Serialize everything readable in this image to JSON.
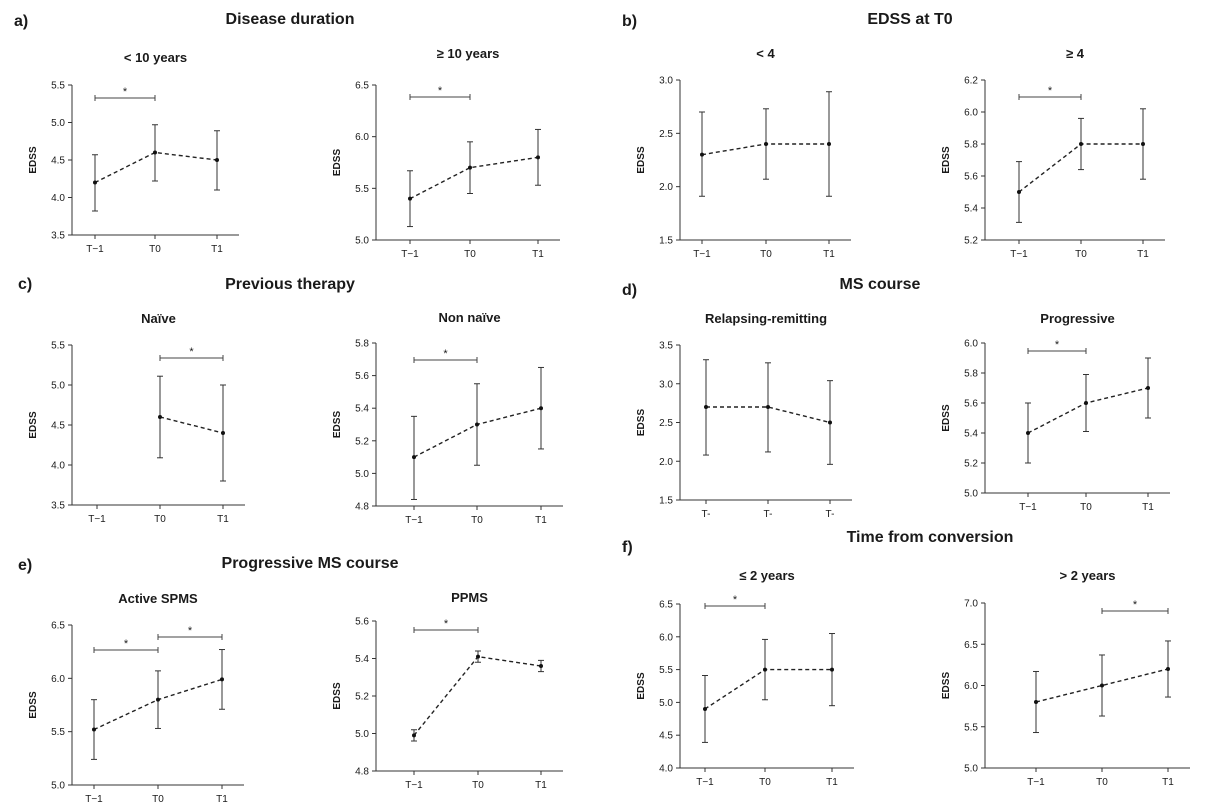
{
  "sections": [
    {
      "letter": "a)",
      "title": "Disease duration"
    },
    {
      "letter": "b)",
      "title": "EDSS at T0"
    },
    {
      "letter": "c)",
      "title": "Previous therapy"
    },
    {
      "letter": "d)",
      "title": "MS course"
    },
    {
      "letter": "e)",
      "title": "Progressive MS course"
    },
    {
      "letter": "f)",
      "title": "Time from conversion"
    }
  ],
  "chart_data": [
    {
      "type": "line",
      "title": "< 10 years",
      "ylabel": "EDSS",
      "categories": [
        "T−1",
        "T0",
        "T1"
      ],
      "values": [
        4.2,
        4.6,
        4.5
      ],
      "err_low": [
        3.82,
        4.22,
        4.1
      ],
      "err_high": [
        4.57,
        4.97,
        4.89
      ],
      "ylim": [
        3.5,
        5.5
      ],
      "yticks": [
        "3.5",
        "4.0",
        "4.5",
        "5.0",
        "5.5"
      ],
      "significance": [
        {
          "from": 0,
          "to": 1,
          "label": "*"
        }
      ]
    },
    {
      "type": "line",
      "title": "≥ 10 years",
      "ylabel": "EDSS",
      "categories": [
        "T−1",
        "T0",
        "T1"
      ],
      "values": [
        5.4,
        5.7,
        5.8
      ],
      "err_low": [
        5.13,
        5.45,
        5.53
      ],
      "err_high": [
        5.67,
        5.95,
        6.07
      ],
      "ylim": [
        5.0,
        6.5
      ],
      "yticks": [
        "5.0",
        "5.5",
        "6.0",
        "6.5"
      ],
      "significance": [
        {
          "from": 0,
          "to": 1,
          "label": "*"
        }
      ]
    },
    {
      "type": "line",
      "title": "< 4",
      "ylabel": "EDSS",
      "categories": [
        "T−1",
        "T0",
        "T1"
      ],
      "values": [
        2.3,
        2.4,
        2.4
      ],
      "err_low": [
        1.91,
        2.07,
        1.91
      ],
      "err_high": [
        2.7,
        2.73,
        2.89
      ],
      "ylim": [
        1.5,
        3.0
      ],
      "yticks": [
        "1.5",
        "2.0",
        "2.5",
        "3.0"
      ],
      "significance": []
    },
    {
      "type": "line",
      "title": "≥ 4",
      "ylabel": "EDSS",
      "categories": [
        "T−1",
        "T0",
        "T1"
      ],
      "values": [
        5.5,
        5.8,
        5.8
      ],
      "err_low": [
        5.31,
        5.64,
        5.58
      ],
      "err_high": [
        5.69,
        5.96,
        6.02
      ],
      "ylim": [
        5.2,
        6.2
      ],
      "yticks": [
        "5.2",
        "5.4",
        "5.6",
        "5.8",
        "6.0",
        "6.2"
      ],
      "significance": [
        {
          "from": 0,
          "to": 1,
          "label": "*"
        }
      ]
    },
    {
      "type": "line",
      "title": "Naïve",
      "ylabel": "EDSS",
      "categories": [
        "T−1",
        "T0",
        "T1"
      ],
      "values": [
        null,
        4.6,
        4.4
      ],
      "err_low": [
        null,
        4.09,
        3.8
      ],
      "err_high": [
        null,
        5.11,
        5.0
      ],
      "ylim": [
        3.5,
        5.5
      ],
      "yticks": [
        "3.5",
        "4.0",
        "4.5",
        "5.0",
        "5.5"
      ],
      "significance": [
        {
          "from": 1,
          "to": 2,
          "label": "*"
        }
      ]
    },
    {
      "type": "line",
      "title": "Non naïve",
      "ylabel": "EDSS",
      "categories": [
        "T−1",
        "T0",
        "T1"
      ],
      "values": [
        5.1,
        5.3,
        5.4
      ],
      "err_low": [
        4.84,
        5.05,
        5.15
      ],
      "err_high": [
        5.35,
        5.55,
        5.65
      ],
      "ylim": [
        4.8,
        5.8
      ],
      "yticks": [
        "4.8",
        "5.0",
        "5.2",
        "5.4",
        "5.6",
        "5.8"
      ],
      "significance": [
        {
          "from": 0,
          "to": 1,
          "label": "*"
        }
      ]
    },
    {
      "type": "line",
      "title": "Relapsing-remitting",
      "ylabel": "EDSS",
      "categories": [
        "T-",
        "T-",
        "T-"
      ],
      "values": [
        2.7,
        2.7,
        2.5
      ],
      "err_low": [
        2.08,
        2.12,
        1.96
      ],
      "err_high": [
        3.31,
        3.27,
        3.04
      ],
      "ylim": [
        1.5,
        3.5
      ],
      "yticks": [
        "1.5",
        "2.0",
        "2.5",
        "3.0",
        "3.5"
      ],
      "significance": []
    },
    {
      "type": "line",
      "title": "Progressive",
      "ylabel": "EDSS",
      "categories": [
        "T−1",
        "T0",
        "T1"
      ],
      "values": [
        5.4,
        5.6,
        5.7
      ],
      "err_low": [
        5.2,
        5.41,
        5.5
      ],
      "err_high": [
        5.6,
        5.79,
        5.9
      ],
      "ylim": [
        5.0,
        6.0
      ],
      "yticks": [
        "5.0",
        "5.2",
        "5.4",
        "5.6",
        "5.8",
        "6.0"
      ],
      "significance": [
        {
          "from": 0,
          "to": 1,
          "label": "*"
        }
      ]
    },
    {
      "type": "line",
      "title": "Active SPMS",
      "ylabel": "EDSS",
      "categories": [
        "T−1",
        "T0",
        "T1"
      ],
      "values": [
        5.52,
        5.8,
        5.99
      ],
      "err_low": [
        5.24,
        5.53,
        5.71
      ],
      "err_high": [
        5.8,
        6.07,
        6.27
      ],
      "ylim": [
        5.0,
        6.5
      ],
      "yticks": [
        "5.0",
        "5.5",
        "6.0",
        "6.5"
      ],
      "significance": [
        {
          "from": 0,
          "to": 1,
          "label": "*"
        },
        {
          "from": 1,
          "to": 2,
          "label": "*"
        }
      ]
    },
    {
      "type": "line",
      "title": "PPMS",
      "ylabel": "EDSS",
      "categories": [
        "T−1",
        "T0",
        "T1"
      ],
      "values": [
        4.99,
        5.41,
        5.36
      ],
      "err_low": [
        4.96,
        5.38,
        5.33
      ],
      "err_high": [
        5.02,
        5.44,
        5.39
      ],
      "ylim": [
        4.8,
        5.6
      ],
      "yticks": [
        "4.8",
        "5.0",
        "5.2",
        "5.4",
        "5.6"
      ],
      "significance": [
        {
          "from": 0,
          "to": 1,
          "label": "*"
        }
      ]
    },
    {
      "type": "line",
      "title": "≤ 2 years",
      "ylabel": "EDSS",
      "categories": [
        "T−1",
        "T0",
        "T1"
      ],
      "values": [
        4.9,
        5.5,
        5.5
      ],
      "err_low": [
        4.39,
        5.04,
        4.95
      ],
      "err_high": [
        5.41,
        5.96,
        6.05
      ],
      "ylim": [
        4.0,
        6.5
      ],
      "yticks": [
        "4.0",
        "4.5",
        "5.0",
        "5.5",
        "6.0",
        "6.5"
      ],
      "significance": [
        {
          "from": 0,
          "to": 1,
          "label": "*"
        }
      ]
    },
    {
      "type": "line",
      "title": "> 2 years",
      "ylabel": "EDSS",
      "categories": [
        "T−1",
        "T0",
        "T1"
      ],
      "values": [
        5.8,
        6.0,
        6.2
      ],
      "err_low": [
        5.43,
        5.63,
        5.86
      ],
      "err_high": [
        6.17,
        6.37,
        6.54
      ],
      "ylim": [
        5.0,
        7.0
      ],
      "yticks": [
        "5.0",
        "5.5",
        "6.0",
        "6.5",
        "7.0"
      ],
      "significance": [
        {
          "from": 1,
          "to": 2,
          "label": "*"
        }
      ]
    }
  ]
}
